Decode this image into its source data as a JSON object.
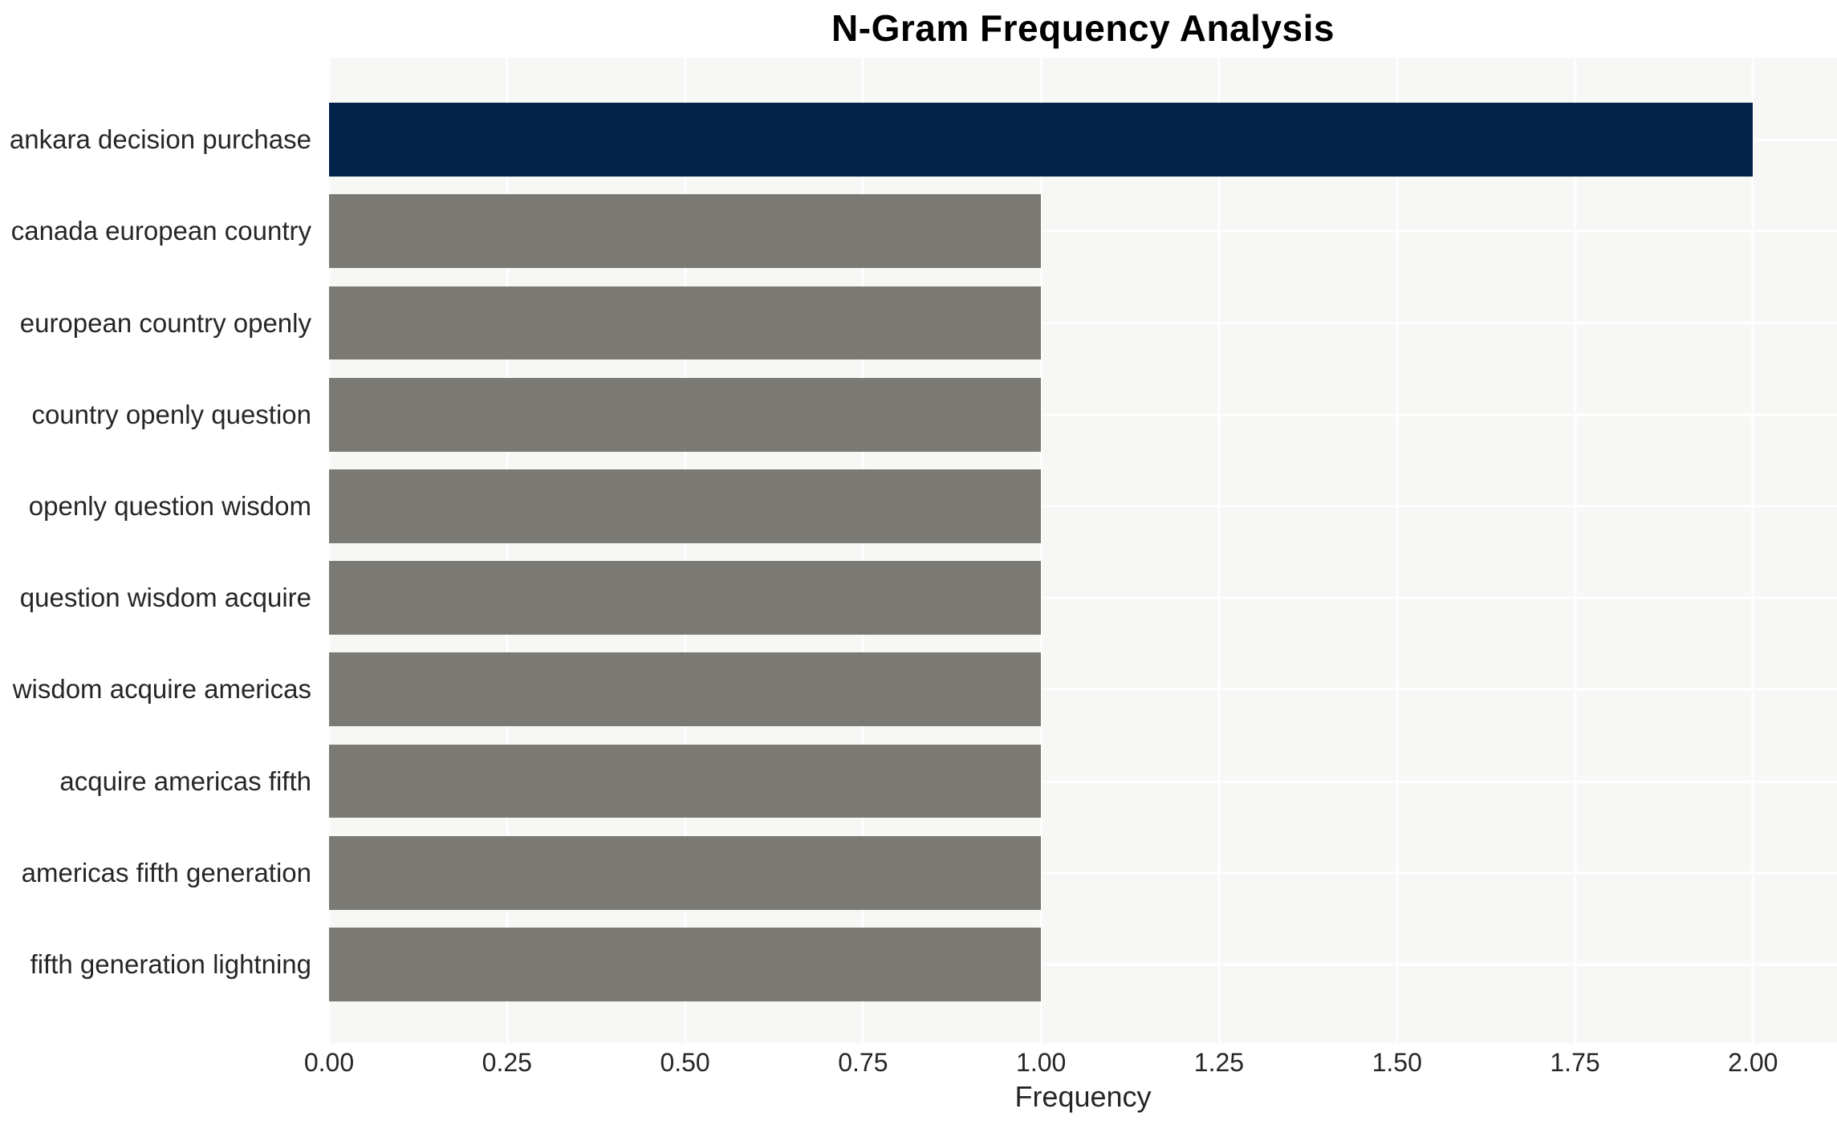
{
  "figure": {
    "title": "N-Gram Frequency Analysis",
    "xlabel": "Frequency"
  },
  "chart_data": {
    "type": "bar",
    "orientation": "horizontal",
    "title": "N-Gram Frequency Analysis",
    "xlabel": "Frequency",
    "ylabel": "",
    "categories": [
      "ankara decision purchase",
      "canada european country",
      "european country openly",
      "country openly question",
      "openly question wisdom",
      "question wisdom acquire",
      "wisdom acquire americas",
      "acquire americas fifth",
      "americas fifth generation",
      "fifth generation lightning"
    ],
    "values": [
      2,
      1,
      1,
      1,
      1,
      1,
      1,
      1,
      1,
      1
    ],
    "xlim": [
      0,
      2.118
    ],
    "xticks": [
      {
        "value": 0.0,
        "label": "0.00"
      },
      {
        "value": 0.25,
        "label": "0.25"
      },
      {
        "value": 0.5,
        "label": "0.50"
      },
      {
        "value": 0.75,
        "label": "0.75"
      },
      {
        "value": 1.0,
        "label": "1.00"
      },
      {
        "value": 1.25,
        "label": "1.25"
      },
      {
        "value": 1.5,
        "label": "1.50"
      },
      {
        "value": 1.75,
        "label": "1.75"
      },
      {
        "value": 2.0,
        "label": "2.00"
      }
    ],
    "grid": true,
    "legend": false,
    "bar_colors": [
      "#03234B",
      "#7B7974",
      "#7B7974",
      "#7B7974",
      "#7B7974",
      "#7B7974",
      "#7B7974",
      "#7B7974",
      "#7B7974",
      "#7B7974"
    ],
    "colors": {
      "highlight_bar": "#03234B",
      "default_bar": "#7B7974",
      "plot_background": "#F7F7F6",
      "gridline": "#FFFFFF",
      "tick_text": "#262626",
      "title_text": "#000000"
    }
  }
}
